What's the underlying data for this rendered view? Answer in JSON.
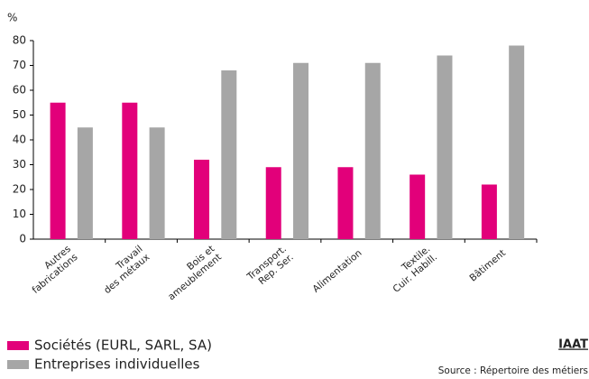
{
  "chart_data": {
    "type": "bar",
    "y_label": "%",
    "categories": [
      "Autres\nfabrications",
      "Travail\ndes métaux",
      "Bois et\nameublement",
      "Transport.\nRep. Ser.",
      "Alimentation",
      "Textile.\nCuir. Habill.",
      "Bâtiment"
    ],
    "series": [
      {
        "name": "Sociétés (EURL, SARL, SA)",
        "color": "#e2007a",
        "values": [
          55,
          55,
          32,
          29,
          29,
          26,
          22
        ]
      },
      {
        "name": "Entreprises individuelles",
        "color": "#a6a6a6",
        "values": [
          45,
          45,
          68,
          71,
          71,
          74,
          78
        ]
      }
    ],
    "ylim": [
      0,
      80
    ],
    "yticks": [
      0,
      10,
      20,
      30,
      40,
      50,
      60,
      70,
      80
    ],
    "grid": false,
    "brand": "IAAT",
    "source": "Source : Répertoire des métiers"
  }
}
